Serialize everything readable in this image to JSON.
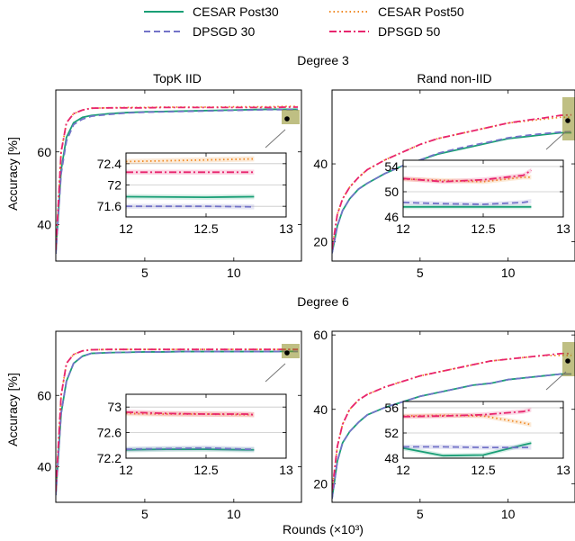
{
  "legend": [
    {
      "name": "CESAR Post30",
      "color": "#1a9f76",
      "dash": "solid"
    },
    {
      "name": "CESAR Post50",
      "color": "#f08a24",
      "dash": "dotted"
    },
    {
      "name": "DPSGD 30",
      "color": "#7373c8",
      "dash": "dashed"
    },
    {
      "name": "DPSGD 50",
      "color": "#e8256e",
      "dash": "dashdot"
    }
  ],
  "row_titles": [
    "Degree 3",
    "Degree 6"
  ],
  "col_titles": [
    "TopK IID",
    "Rand non-IID"
  ],
  "xlabel": "Rounds (×10³)",
  "ylabel": "Accuracy [%]",
  "chart_data": [
    {
      "type": "line",
      "title": "TopK IID",
      "row": "Degree 3",
      "xlim": [
        0,
        13.8
      ],
      "ylim": [
        30,
        77
      ],
      "xticks": [
        5,
        10
      ],
      "yticks": [
        40,
        60
      ],
      "x": [
        0,
        0.3,
        0.6,
        1,
        1.5,
        2,
        3,
        4,
        5,
        6,
        7,
        8,
        9,
        10,
        11,
        12,
        13,
        13.6
      ],
      "series": [
        {
          "name": "CESAR Post30",
          "values": [
            32,
            55,
            64,
            68,
            69.5,
            70,
            70.5,
            70.8,
            71,
            71.1,
            71.2,
            71.3,
            71.4,
            71.5,
            71.6,
            71.7,
            71.7,
            71.7
          ]
        },
        {
          "name": "CESAR Post50",
          "values": [
            33,
            60,
            68,
            70.5,
            71.5,
            72,
            72.1,
            72.2,
            72.2,
            72.3,
            72.3,
            72.3,
            72.3,
            72.4,
            72.4,
            72.4,
            72.5,
            72.5
          ]
        },
        {
          "name": "DPSGD 30",
          "values": [
            32,
            54,
            63,
            67.5,
            69,
            69.8,
            70.3,
            70.7,
            70.9,
            71,
            71.1,
            71.2,
            71.3,
            71.4,
            71.5,
            71.6,
            71.6,
            71.6
          ]
        },
        {
          "name": "DPSGD 50",
          "values": [
            33,
            60,
            68,
            70.5,
            71.5,
            72,
            72.1,
            72.1,
            72.1,
            72.2,
            72.2,
            72.2,
            72.2,
            72.2,
            72.2,
            72.2,
            72.3,
            72.3
          ]
        }
      ],
      "inset": {
        "xlim": [
          12,
          13
        ],
        "ylim": [
          71.4,
          72.6
        ],
        "xticks": [
          12,
          12.5,
          13
        ],
        "yticks": [
          71.6,
          72,
          72.4
        ],
        "x": [
          12,
          12.5,
          12.8
        ],
        "series": [
          {
            "name": "CESAR Post30",
            "values": [
              71.78,
              71.77,
              71.78
            ]
          },
          {
            "name": "CESAR Post50",
            "values": [
              72.44,
              72.47,
              72.49
            ]
          },
          {
            "name": "DPSGD 30",
            "values": [
              71.6,
              71.6,
              71.59
            ]
          },
          {
            "name": "DPSGD 50",
            "values": [
              72.24,
              72.24,
              72.24
            ]
          }
        ]
      }
    },
    {
      "type": "line",
      "title": "Rand non-IID",
      "row": "Degree 3",
      "xlim": [
        0,
        13.8
      ],
      "ylim": [
        15,
        59
      ],
      "xticks": [
        5,
        10
      ],
      "yticks": [
        20,
        40
      ],
      "x": [
        0,
        0.3,
        0.6,
        1,
        1.5,
        2,
        3,
        4,
        5,
        6,
        7,
        8,
        9,
        10,
        11,
        12,
        13,
        13.6
      ],
      "series": [
        {
          "name": "CESAR Post30",
          "values": [
            17,
            24,
            28,
            31,
            33.5,
            35,
            37.5,
            39.5,
            41,
            42.5,
            43.5,
            44.5,
            45.5,
            46.5,
            47,
            47.5,
            48,
            48
          ]
        },
        {
          "name": "CESAR Post50",
          "values": [
            18,
            27,
            31,
            34,
            36.5,
            38.5,
            41,
            43,
            45,
            46.5,
            47.5,
            48.5,
            49.5,
            50.5,
            51,
            51.5,
            52,
            52
          ]
        },
        {
          "name": "DPSGD 30",
          "values": [
            17,
            24,
            28,
            31,
            33.5,
            35,
            37.5,
            39.5,
            41,
            42.7,
            43.8,
            44.8,
            45.7,
            46.7,
            47.3,
            47.8,
            48.2,
            48.3
          ]
        },
        {
          "name": "DPSGD 50",
          "values": [
            18,
            27,
            31,
            34,
            36.5,
            38.5,
            41,
            43,
            45,
            46.5,
            47.5,
            48.5,
            49.5,
            50.5,
            51.2,
            51.8,
            52.5,
            52.6
          ]
        }
      ],
      "inset": {
        "xlim": [
          12,
          13
        ],
        "ylim": [
          46,
          55
        ],
        "xticks": [
          12,
          12.5,
          13
        ],
        "yticks": [
          46,
          50,
          54
        ],
        "x": [
          12,
          12.25,
          12.5,
          12.75,
          12.8
        ],
        "series": [
          {
            "name": "CESAR Post30",
            "values": [
              47.6,
              47.6,
              47.6,
              47.6,
              47.6
            ]
          },
          {
            "name": "CESAR Post50",
            "values": [
              52,
              51.8,
              51.6,
              52.3,
              52.3
            ]
          },
          {
            "name": "DPSGD 30",
            "values": [
              48.3,
              48.1,
              48.0,
              48.3,
              48.5
            ]
          },
          {
            "name": "DPSGD 50",
            "values": [
              52.1,
              51.6,
              51.9,
              52.6,
              53.4
            ]
          }
        ]
      }
    },
    {
      "type": "line",
      "title": "",
      "row": "Degree 6",
      "xlim": [
        0,
        13.8
      ],
      "ylim": [
        30,
        78
      ],
      "xticks": [
        5,
        10
      ],
      "yticks": [
        40,
        60
      ],
      "x": [
        0,
        0.3,
        0.6,
        1,
        1.5,
        2,
        3,
        4,
        5,
        6,
        7,
        8,
        9,
        10,
        11,
        12,
        13,
        13.6
      ],
      "series": [
        {
          "name": "CESAR Post30",
          "values": [
            32,
            55,
            64,
            69,
            71,
            71.8,
            72,
            72.1,
            72.2,
            72.2,
            72.3,
            72.3,
            72.3,
            72.3,
            72.3,
            72.3,
            72.35,
            72.35
          ]
        },
        {
          "name": "CESAR Post50",
          "values": [
            33,
            60,
            69,
            71.5,
            72.5,
            72.8,
            72.9,
            72.9,
            72.9,
            72.9,
            72.9,
            72.9,
            72.9,
            72.9,
            72.9,
            72.9,
            72.9,
            72.9
          ]
        },
        {
          "name": "DPSGD 30",
          "values": [
            32,
            55,
            64,
            69,
            71,
            71.8,
            72,
            72.1,
            72.2,
            72.2,
            72.3,
            72.3,
            72.3,
            72.3,
            72.3,
            72.3,
            72.35,
            72.35
          ]
        },
        {
          "name": "DPSGD 50",
          "values": [
            33,
            60,
            69,
            71.5,
            72.5,
            72.8,
            72.9,
            72.9,
            72.9,
            72.9,
            72.9,
            72.9,
            72.9,
            72.9,
            72.9,
            72.9,
            72.9,
            72.9
          ]
        }
      ],
      "inset": {
        "xlim": [
          12,
          13
        ],
        "ylim": [
          72.2,
          73.2
        ],
        "xticks": [
          12,
          12.5,
          13
        ],
        "yticks": [
          72.2,
          72.6,
          73
        ],
        "x": [
          12,
          12.25,
          12.5,
          12.75,
          12.8
        ],
        "series": [
          {
            "name": "CESAR Post30",
            "values": [
              72.33,
              72.34,
              72.34,
              72.33,
              72.33
            ]
          },
          {
            "name": "CESAR Post50",
            "values": [
              72.9,
              72.89,
              72.89,
              72.88,
              72.88
            ]
          },
          {
            "name": "DPSGD 30",
            "values": [
              72.34,
              72.35,
              72.36,
              72.34,
              72.34
            ]
          },
          {
            "name": "DPSGD 50",
            "values": [
              72.92,
              72.9,
              72.89,
              72.89,
              72.88
            ]
          }
        ]
      }
    },
    {
      "type": "line",
      "title": "",
      "row": "Degree 6",
      "xlim": [
        0,
        13.8
      ],
      "ylim": [
        15,
        61
      ],
      "xticks": [
        5,
        10
      ],
      "yticks": [
        20,
        40,
        60
      ],
      "x": [
        0,
        0.3,
        0.6,
        1,
        1.5,
        2,
        3,
        4,
        5,
        6,
        7,
        8,
        9,
        10,
        11,
        12,
        13,
        13.6
      ],
      "series": [
        {
          "name": "CESAR Post30",
          "values": [
            16,
            26,
            31,
            34,
            36.5,
            38.5,
            40.5,
            42,
            43.5,
            44.5,
            45.5,
            46.5,
            47,
            48,
            48.5,
            49,
            49.5,
            49.5
          ]
        },
        {
          "name": "CESAR Post50",
          "values": [
            18,
            30,
            36,
            40,
            42.5,
            44,
            46,
            47.5,
            49,
            50,
            51,
            52,
            53,
            53.5,
            54,
            54.5,
            54.5,
            54.5
          ]
        },
        {
          "name": "DPSGD 30",
          "values": [
            16,
            26,
            31,
            34,
            36.5,
            38.5,
            40.5,
            42,
            43.5,
            44.5,
            45.5,
            46.5,
            47,
            48,
            48.5,
            49,
            49.5,
            49.5
          ]
        },
        {
          "name": "DPSGD 50",
          "values": [
            18,
            30,
            36,
            40,
            42.5,
            44,
            46,
            47.5,
            49,
            50,
            51,
            52,
            53,
            53.5,
            54,
            54.5,
            55,
            55
          ]
        }
      ],
      "inset": {
        "xlim": [
          12,
          13
        ],
        "ylim": [
          48,
          57
        ],
        "xticks": [
          12,
          12.5,
          13
        ],
        "yticks": [
          48,
          52,
          56
        ],
        "x": [
          12,
          12.25,
          12.5,
          12.75,
          12.8
        ],
        "series": [
          {
            "name": "CESAR Post30",
            "values": [
              49.6,
              48.4,
              48.5,
              50.1,
              50.4
            ]
          },
          {
            "name": "CESAR Post50",
            "values": [
              54.7,
              54.8,
              54.7,
              53.6,
              53.3
            ]
          },
          {
            "name": "DPSGD 30",
            "values": [
              49.8,
              49.8,
              49.7,
              49.7,
              49.7
            ]
          },
          {
            "name": "DPSGD 50",
            "values": [
              54.6,
              54.7,
              54.9,
              55.4,
              55.7
            ]
          }
        ]
      }
    }
  ]
}
